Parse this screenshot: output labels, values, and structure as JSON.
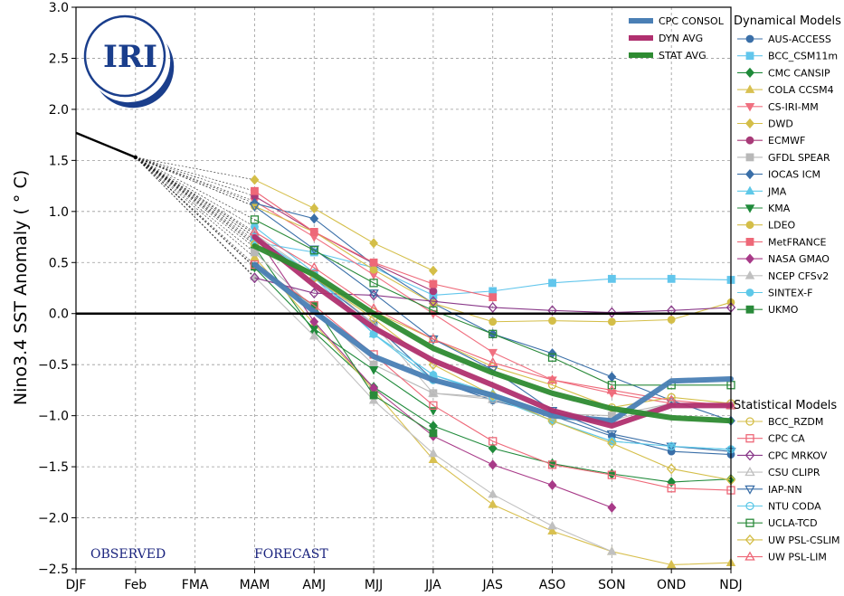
{
  "chart_data": {
    "type": "line",
    "ylabel": "Nino3.4 SST Anomaly ( ° C)",
    "ylim": [
      -2.5,
      3.0
    ],
    "yticks": [
      -2.5,
      -2.0,
      -1.5,
      -1.0,
      -0.5,
      0.0,
      0.5,
      1.0,
      1.5,
      2.0,
      2.5,
      3.0
    ],
    "ytick_labels": [
      "−2.5",
      "−2.0",
      "−1.5",
      "−1.0",
      "−0.5",
      "0.0",
      "0.5",
      "1.0",
      "1.5",
      "2.0",
      "2.5",
      "3.0"
    ],
    "categories": [
      "DJF",
      "Feb",
      "FMA",
      "MAM",
      "AMJ",
      "MJJ",
      "JJA",
      "JAS",
      "ASO",
      "SON",
      "OND",
      "NDJ"
    ],
    "grid": true,
    "observed": {
      "x": [
        "DJF",
        "Feb"
      ],
      "values": [
        1.77,
        1.53
      ]
    },
    "observed_label": "OBSERVED",
    "forecast_label": "FORECAST",
    "logo_text": "IRI",
    "summary_series": [
      {
        "name": "CPC CONSOL",
        "color": "#4a7fb5",
        "values": [
          null,
          null,
          null,
          0.48,
          0.02,
          -0.42,
          -0.65,
          -0.8,
          -1.0,
          -1.05,
          -0.66,
          -0.64
        ]
      },
      {
        "name": "DYN AVG",
        "color": "#b0306f",
        "values": [
          null,
          null,
          null,
          0.75,
          0.28,
          -0.14,
          -0.46,
          -0.7,
          -0.95,
          -1.1,
          -0.9,
          -0.9
        ]
      },
      {
        "name": "STAT AVG",
        "color": "#2e8b32",
        "values": [
          null,
          null,
          null,
          0.66,
          0.38,
          0.0,
          -0.34,
          -0.58,
          -0.78,
          -0.93,
          -1.02,
          -1.05
        ]
      }
    ],
    "dynamical_title": "Dynamical Models",
    "dynamical_models": [
      {
        "name": "AUS-ACCESS",
        "color": "#3a6fa8",
        "marker": "circle",
        "values": [
          null,
          null,
          null,
          0.75,
          0.35,
          -0.1,
          -0.65,
          -0.85,
          -1.0,
          -1.2,
          -1.35,
          -1.38
        ]
      },
      {
        "name": "BCC_CSM11m",
        "color": "#62c6ec",
        "marker": "square",
        "values": [
          null,
          null,
          null,
          0.7,
          0.6,
          0.45,
          0.18,
          0.22,
          0.3,
          0.34,
          0.34,
          0.33
        ]
      },
      {
        "name": "CMC CANSIP",
        "color": "#1f8a3a",
        "marker": "diamond",
        "values": [
          null,
          null,
          null,
          0.65,
          -0.18,
          -0.72,
          -1.1,
          -1.32,
          -1.47,
          -1.57,
          -1.65,
          -1.62
        ]
      },
      {
        "name": "COLA CCSM4",
        "color": "#d8c050",
        "marker": "triangle-up",
        "values": [
          null,
          null,
          null,
          0.55,
          -0.1,
          -0.75,
          -1.43,
          -1.87,
          -2.13,
          -2.33,
          -2.46,
          -2.44
        ]
      },
      {
        "name": "CS-IRI-MM",
        "color": "#f07080",
        "marker": "triangle-down",
        "values": [
          null,
          null,
          null,
          1.1,
          0.75,
          0.38,
          0.0,
          -0.38,
          -0.65,
          -0.78,
          -0.88,
          -0.9
        ]
      },
      {
        "name": "DWD",
        "color": "#d4be48",
        "marker": "diamond",
        "values": [
          null,
          null,
          null,
          1.31,
          1.03,
          0.69,
          0.42,
          null,
          null,
          null,
          null,
          null
        ]
      },
      {
        "name": "ECMWF",
        "color": "#a83a78",
        "marker": "circle",
        "values": [
          null,
          null,
          null,
          1.15,
          0.8,
          0.49,
          0.22,
          null,
          null,
          null,
          null,
          null
        ]
      },
      {
        "name": "GFDL SPEAR",
        "color": "#b8b8b8",
        "marker": "square",
        "values": [
          null,
          null,
          null,
          0.6,
          0.05,
          -0.5,
          -0.78,
          -0.82,
          -0.98,
          -1.0,
          -0.88,
          -0.9
        ]
      },
      {
        "name": "IOCAS ICM",
        "color": "#3a6fa8",
        "marker": "diamond",
        "values": [
          null,
          null,
          null,
          1.08,
          0.93,
          0.48,
          0.1,
          -0.2,
          -0.39,
          -0.62,
          -0.85,
          -1.05
        ]
      },
      {
        "name": "JMA",
        "color": "#5ec8e8",
        "marker": "triangle-up",
        "values": [
          null,
          null,
          null,
          0.72,
          0.35,
          -0.2,
          -0.6,
          -0.78,
          -0.98,
          null,
          null,
          null
        ]
      },
      {
        "name": "KMA",
        "color": "#1f8a3a",
        "marker": "triangle-down",
        "values": [
          null,
          null,
          null,
          0.45,
          -0.15,
          -0.55,
          -0.95,
          null,
          null,
          null,
          null,
          null
        ]
      },
      {
        "name": "LDEO",
        "color": "#d4be48",
        "marker": "circle",
        "values": [
          null,
          null,
          null,
          1.05,
          0.8,
          0.43,
          0.1,
          -0.08,
          -0.07,
          -0.08,
          -0.06,
          0.11
        ]
      },
      {
        "name": "MetFRANCE",
        "color": "#ee6878",
        "marker": "square",
        "values": [
          null,
          null,
          null,
          1.2,
          0.8,
          0.5,
          0.29,
          0.16,
          null,
          null,
          null,
          null
        ]
      },
      {
        "name": "NASA GMAO",
        "color": "#a83a88",
        "marker": "diamond",
        "values": [
          null,
          null,
          null,
          0.78,
          -0.08,
          -0.73,
          -1.2,
          -1.48,
          -1.68,
          -1.9,
          null,
          null
        ]
      },
      {
        "name": "NCEP CFSv2",
        "color": "#c0c0c0",
        "marker": "triangle-up",
        "values": [
          null,
          null,
          null,
          0.36,
          -0.22,
          -0.85,
          -1.37,
          -1.77,
          -2.08,
          -2.33,
          null,
          null
        ]
      },
      {
        "name": "SINTEX-F",
        "color": "#5ec8e8",
        "marker": "circle",
        "values": [
          null,
          null,
          null,
          0.85,
          0.4,
          -0.2,
          -0.6,
          -0.8,
          -1.05,
          -1.25,
          -1.3,
          -1.33
        ]
      },
      {
        "name": "UKMO",
        "color": "#2a8a3a",
        "marker": "square",
        "values": [
          null,
          null,
          null,
          0.46,
          0.08,
          -0.8,
          -1.17,
          null,
          null,
          null,
          null,
          null
        ]
      }
    ],
    "statistical_title": "Statistical Models",
    "statistical_models": [
      {
        "name": "BCC_RZDM",
        "color": "#d4be48",
        "marker": "circle-open",
        "values": [
          null,
          null,
          null,
          0.68,
          0.35,
          0.02,
          -0.25,
          -0.52,
          -0.7,
          -0.92,
          -0.82,
          -0.88
        ]
      },
      {
        "name": "CPC CA",
        "color": "#ee6878",
        "marker": "square-open",
        "values": [
          null,
          null,
          null,
          0.48,
          0.08,
          -0.4,
          -0.9,
          -1.25,
          -1.48,
          -1.58,
          -1.71,
          -1.73
        ]
      },
      {
        "name": "CPC MRKOV",
        "color": "#8a3a8a",
        "marker": "diamond-open",
        "values": [
          null,
          null,
          null,
          0.35,
          0.2,
          0.18,
          0.12,
          0.06,
          0.03,
          0.01,
          0.03,
          0.06
        ]
      },
      {
        "name": "CSU CLIPR",
        "color": "#c0c0c0",
        "marker": "triangle-up-open",
        "values": [
          null,
          null,
          null,
          0.78,
          0.38,
          -0.1,
          -0.78,
          -0.84,
          -1.0,
          -1.05,
          -0.88,
          -0.9
        ]
      },
      {
        "name": "IAP-NN",
        "color": "#3a6fa8",
        "marker": "triangle-down-open",
        "values": [
          null,
          null,
          null,
          1.05,
          0.63,
          0.2,
          -0.25,
          -0.55,
          -0.95,
          -1.18,
          -1.3,
          -1.35
        ]
      },
      {
        "name": "NTU CODA",
        "color": "#5ec8e8",
        "marker": "circle-open",
        "values": [
          null,
          null,
          null,
          0.75,
          0.38,
          -0.2,
          -0.65,
          -0.82,
          -1.05,
          -1.25,
          -1.3,
          -1.33
        ]
      },
      {
        "name": "UCLA-TCD",
        "color": "#2a8a3a",
        "marker": "square-open",
        "values": [
          null,
          null,
          null,
          0.92,
          0.62,
          0.3,
          0.03,
          -0.2,
          -0.43,
          -0.7,
          -0.7,
          -0.7
        ]
      },
      {
        "name": "UW PSL-CSLIM",
        "color": "#d4be48",
        "marker": "diamond-open",
        "values": [
          null,
          null,
          null,
          0.68,
          0.35,
          -0.05,
          -0.5,
          -0.8,
          -1.05,
          -1.27,
          -1.52,
          -1.63
        ]
      },
      {
        "name": "UW PSL-LIM",
        "color": "#ee6878",
        "marker": "triangle-up-open",
        "values": [
          null,
          null,
          null,
          0.8,
          0.45,
          0.05,
          -0.25,
          -0.48,
          -0.65,
          -0.75,
          -0.85,
          -0.9
        ]
      }
    ]
  }
}
